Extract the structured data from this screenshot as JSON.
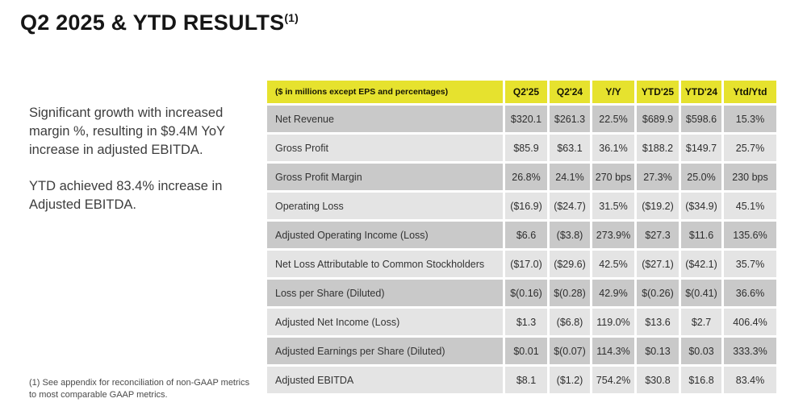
{
  "slide": {
    "title": "Q2 2025 & YTD RESULTS",
    "title_footnote_marker": "(1)",
    "highlights": {
      "p1": "Significant growth with increased margin %, resulting in $9.4M YoY increase in adjusted EBITDA.",
      "p2": "YTD achieved 83.4% increase in Adjusted EBITDA."
    },
    "footnote": "(1) See appendix for reconciliation of non-GAAP metrics to most comparable GAAP metrics."
  },
  "colors": {
    "accent_yellow": "#e6e22e",
    "row_dark": "#c9c9c9",
    "row_light": "#e4e4e4"
  },
  "chart_data": {
    "type": "table",
    "title": "Q2 2025 & YTD Results",
    "unit_note": "($ in millions except EPS and percentages)",
    "columns": [
      "Q2'25",
      "Q2'24",
      "Y/Y",
      "YTD'25",
      "YTD'24",
      "Ytd/Ytd"
    ],
    "rows": [
      {
        "label": "Net Revenue",
        "values": [
          "$320.1",
          "$261.3",
          "22.5%",
          "$689.9",
          "$598.6",
          "15.3%"
        ]
      },
      {
        "label": "Gross Profit",
        "values": [
          "$85.9",
          "$63.1",
          "36.1%",
          "$188.2",
          "$149.7",
          "25.7%"
        ]
      },
      {
        "label": "Gross Profit Margin",
        "values": [
          "26.8%",
          "24.1%",
          "270 bps",
          "27.3%",
          "25.0%",
          "230 bps"
        ]
      },
      {
        "label": "Operating Loss",
        "values": [
          "($16.9)",
          "($24.7)",
          "31.5%",
          "($19.2)",
          "($34.9)",
          "45.1%"
        ]
      },
      {
        "label": "Adjusted Operating Income (Loss)",
        "values": [
          "$6.6",
          "($3.8)",
          "273.9%",
          "$27.3",
          "$11.6",
          "135.6%"
        ]
      },
      {
        "label": "Net Loss Attributable to Common Stockholders",
        "values": [
          "($17.0)",
          "($29.6)",
          "42.5%",
          "($27.1)",
          "($42.1)",
          "35.7%"
        ]
      },
      {
        "label": "Loss per Share (Diluted)",
        "values": [
          "$(0.16)",
          "$(0.28)",
          "42.9%",
          "$(0.26)",
          "$(0.41)",
          "36.6%"
        ]
      },
      {
        "label": "Adjusted Net Income (Loss)",
        "values": [
          "$1.3",
          "($6.8)",
          "119.0%",
          "$13.6",
          "$2.7",
          "406.4%"
        ]
      },
      {
        "label": "Adjusted Earnings per Share (Diluted)",
        "values": [
          "$0.01",
          "$(0.07)",
          "114.3%",
          "$0.13",
          "$0.03",
          "333.3%"
        ]
      },
      {
        "label": "Adjusted EBITDA",
        "values": [
          "$8.1",
          "($1.2)",
          "754.2%",
          "$30.8",
          "$16.8",
          "83.4%"
        ]
      }
    ]
  }
}
